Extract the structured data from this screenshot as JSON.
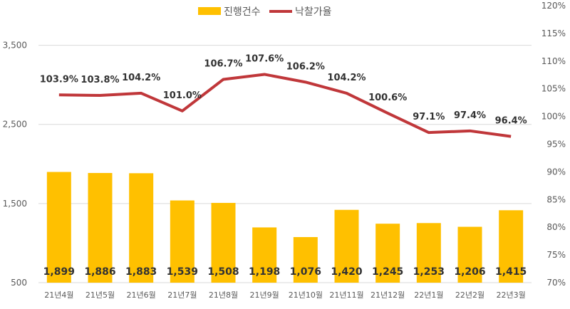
{
  "chart_data": {
    "type": "bar+line",
    "categories": [
      "21년4월",
      "21년5월",
      "21년6월",
      "21년7월",
      "21년8월",
      "21년9월",
      "21년10월",
      "21년11월",
      "21년12월",
      "22년1월",
      "22년2월",
      "22년3월"
    ],
    "series": [
      {
        "name": "진행건수",
        "type": "bar",
        "axis": "left",
        "color": "#FFC000",
        "values": [
          1899,
          1886,
          1883,
          1539,
          1508,
          1198,
          1076,
          1420,
          1245,
          1253,
          1206,
          1415
        ],
        "labels": [
          "1,899",
          "1,886",
          "1,883",
          "1,539",
          "1,508",
          "1,198",
          "1,076",
          "1,420",
          "1,245",
          "1,253",
          "1,206",
          "1,415"
        ]
      },
      {
        "name": "낙찰가율",
        "type": "line",
        "axis": "right",
        "color": "#C0373A",
        "values": [
          103.9,
          103.8,
          104.2,
          101.0,
          106.7,
          107.6,
          106.2,
          104.2,
          100.6,
          97.1,
          97.4,
          96.4
        ],
        "labels": [
          "103.9%",
          "103.8%",
          "104.2%",
          "101.0%",
          "106.7%",
          "107.6%",
          "106.2%",
          "104.2%",
          "100.6%",
          "97.1%",
          "97.4%",
          "96.4%"
        ]
      }
    ],
    "left_axis": {
      "range": [
        500,
        4000
      ],
      "ticks": [
        500,
        1500,
        2500,
        3500
      ],
      "tick_labels": [
        "500",
        "1,500",
        "2,500",
        "3,500"
      ]
    },
    "right_axis": {
      "range": [
        70,
        120
      ],
      "ticks": [
        70,
        75,
        80,
        85,
        90,
        95,
        100,
        105,
        110,
        115,
        120
      ],
      "tick_labels": [
        "70%",
        "75%",
        "80%",
        "85%",
        "90%",
        "95%",
        "100%",
        "105%",
        "110%",
        "115%",
        "120%"
      ]
    },
    "grid": true,
    "legend": "top-center"
  }
}
